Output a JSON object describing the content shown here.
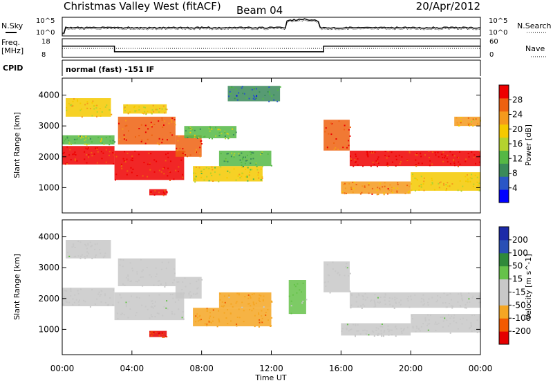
{
  "header": {
    "title": "Christmas Valley West (fitACF)",
    "beam": "Beam 04",
    "date": "20/Apr/2012"
  },
  "noise_panel": {
    "left_label": "N.Sky",
    "right_label": "N.Search",
    "ticks": [
      "10^5",
      "10^0"
    ]
  },
  "freq_panel": {
    "left_label_1": "Freq.",
    "left_label_2": "[MHz]",
    "left_ticks": [
      "18",
      "8"
    ],
    "right_label": "Nave",
    "right_ticks": [
      "60",
      "0"
    ]
  },
  "cpid": {
    "label": "CPID",
    "mode": "normal (fast) -151 IF"
  },
  "colors": {
    "power": [
      "#0000ff",
      "#2a56c6",
      "#3a8a5a",
      "#55b845",
      "#b4d22e",
      "#f5c900",
      "#f59a1d",
      "#ee6110",
      "#ee0000"
    ],
    "velocity": [
      "#e50000",
      "#f25a00",
      "#f5a623",
      "#c8c8c8",
      "#c8c8c8",
      "#66c24a",
      "#2f8a3a",
      "#2a4fb5",
      "#1c2aa8"
    ],
    "line": "#000000"
  },
  "chart_data": {
    "type": "heatmap",
    "xlabel": "Time UT",
    "x_ticks": [
      "00:00",
      "04:00",
      "08:00",
      "12:00",
      "16:00",
      "20:00",
      "00:00"
    ],
    "xlim_hours": [
      0,
      24
    ],
    "ylabel": "Slant Range [km]",
    "ylim_km": [
      180,
      4550
    ],
    "y_ticks": [
      1000,
      2000,
      3000,
      4000
    ],
    "freq_mhz": [
      {
        "from_hour": 0.0,
        "to_hour": 3.0,
        "value": 14
      },
      {
        "from_hour": 3.0,
        "to_hour": 15.0,
        "value": 11
      },
      {
        "from_hour": 15.0,
        "to_hour": 24.0,
        "value": 14
      }
    ],
    "noise_event": {
      "from_hour": 12.8,
      "to_hour": 14.8
    },
    "panels": [
      {
        "name": "power",
        "colorbar_label": "Power [dB]",
        "colorbar_ticks": [
          "28",
          "24",
          "20",
          "16",
          "12",
          "8",
          "4"
        ],
        "range": [
          0,
          32
        ],
        "bands": [
          {
            "t0": 0.0,
            "t1": 3.0,
            "r0": 1750,
            "r1": 2350,
            "v": 30
          },
          {
            "t0": 0.0,
            "t1": 3.0,
            "r0": 2400,
            "r1": 2700,
            "v": 14
          },
          {
            "t0": 0.2,
            "t1": 2.8,
            "r0": 3300,
            "r1": 3900,
            "v": 20
          },
          {
            "t0": 3.0,
            "t1": 7.0,
            "r0": 1250,
            "r1": 2200,
            "v": 30
          },
          {
            "t0": 3.2,
            "t1": 6.5,
            "r0": 2400,
            "r1": 3300,
            "v": 27
          },
          {
            "t0": 3.5,
            "t1": 6.0,
            "r0": 3400,
            "r1": 3700,
            "v": 20
          },
          {
            "t0": 6.5,
            "t1": 8.0,
            "r0": 2000,
            "r1": 2700,
            "v": 27
          },
          {
            "t0": 7.0,
            "t1": 10.0,
            "r0": 2600,
            "r1": 3000,
            "v": 14
          },
          {
            "t0": 7.5,
            "t1": 11.5,
            "r0": 1200,
            "r1": 1700,
            "v": 18
          },
          {
            "t0": 9.0,
            "t1": 12.0,
            "r0": 1700,
            "r1": 2200,
            "v": 12
          },
          {
            "t0": 9.5,
            "t1": 12.5,
            "r0": 3800,
            "r1": 4300,
            "v": 8
          },
          {
            "t0": 15.0,
            "t1": 16.5,
            "r0": 2200,
            "r1": 3200,
            "v": 28
          },
          {
            "t0": 16.5,
            "t1": 24.0,
            "r0": 1700,
            "r1": 2200,
            "v": 30
          },
          {
            "t0": 16.0,
            "t1": 20.0,
            "r0": 800,
            "r1": 1200,
            "v": 24
          },
          {
            "t0": 20.0,
            "t1": 24.0,
            "r0": 900,
            "r1": 1500,
            "v": 20
          },
          {
            "t0": 22.5,
            "t1": 24.0,
            "r0": 3000,
            "r1": 3300,
            "v": 22
          },
          {
            "t0": 5.0,
            "t1": 6.0,
            "r0": 750,
            "r1": 950,
            "v": 30
          }
        ]
      },
      {
        "name": "velocity",
        "colorbar_label": "Velocity [m s^-1]",
        "colorbar_ticks": [
          "200",
          "100",
          "50",
          "15",
          "-15",
          "-50",
          "-100",
          "-200"
        ],
        "range": [
          -250,
          250
        ],
        "bands": [
          {
            "t0": 0.0,
            "t1": 3.0,
            "r0": 1750,
            "r1": 2350,
            "v": 0
          },
          {
            "t0": 0.2,
            "t1": 2.8,
            "r0": 3300,
            "r1": 3900,
            "v": 0
          },
          {
            "t0": 3.0,
            "t1": 7.0,
            "r0": 1300,
            "r1": 2200,
            "v": 0
          },
          {
            "t0": 3.2,
            "t1": 6.5,
            "r0": 2400,
            "r1": 3300,
            "v": -40
          },
          {
            "t0": 6.5,
            "t1": 8.0,
            "r0": 2000,
            "r1": 2700,
            "v": -40
          },
          {
            "t0": 7.5,
            "t1": 12.0,
            "r0": 1100,
            "r1": 1700,
            "v": -120
          },
          {
            "t0": 9.0,
            "t1": 12.0,
            "r0": 1700,
            "r1": 2200,
            "v": -110
          },
          {
            "t0": 5.0,
            "t1": 6.0,
            "r0": 750,
            "r1": 950,
            "v": -200
          },
          {
            "t0": 15.0,
            "t1": 16.5,
            "r0": 2200,
            "r1": 3200,
            "v": 0
          },
          {
            "t0": 16.5,
            "t1": 24.0,
            "r0": 1700,
            "r1": 2200,
            "v": 0
          },
          {
            "t0": 16.0,
            "t1": 20.0,
            "r0": 800,
            "r1": 1200,
            "v": 0
          },
          {
            "t0": 20.0,
            "t1": 24.0,
            "r0": 900,
            "r1": 1500,
            "v": 0
          },
          {
            "t0": 13.0,
            "t1": 14.0,
            "r0": 1500,
            "r1": 2600,
            "v": 40
          }
        ]
      }
    ]
  }
}
